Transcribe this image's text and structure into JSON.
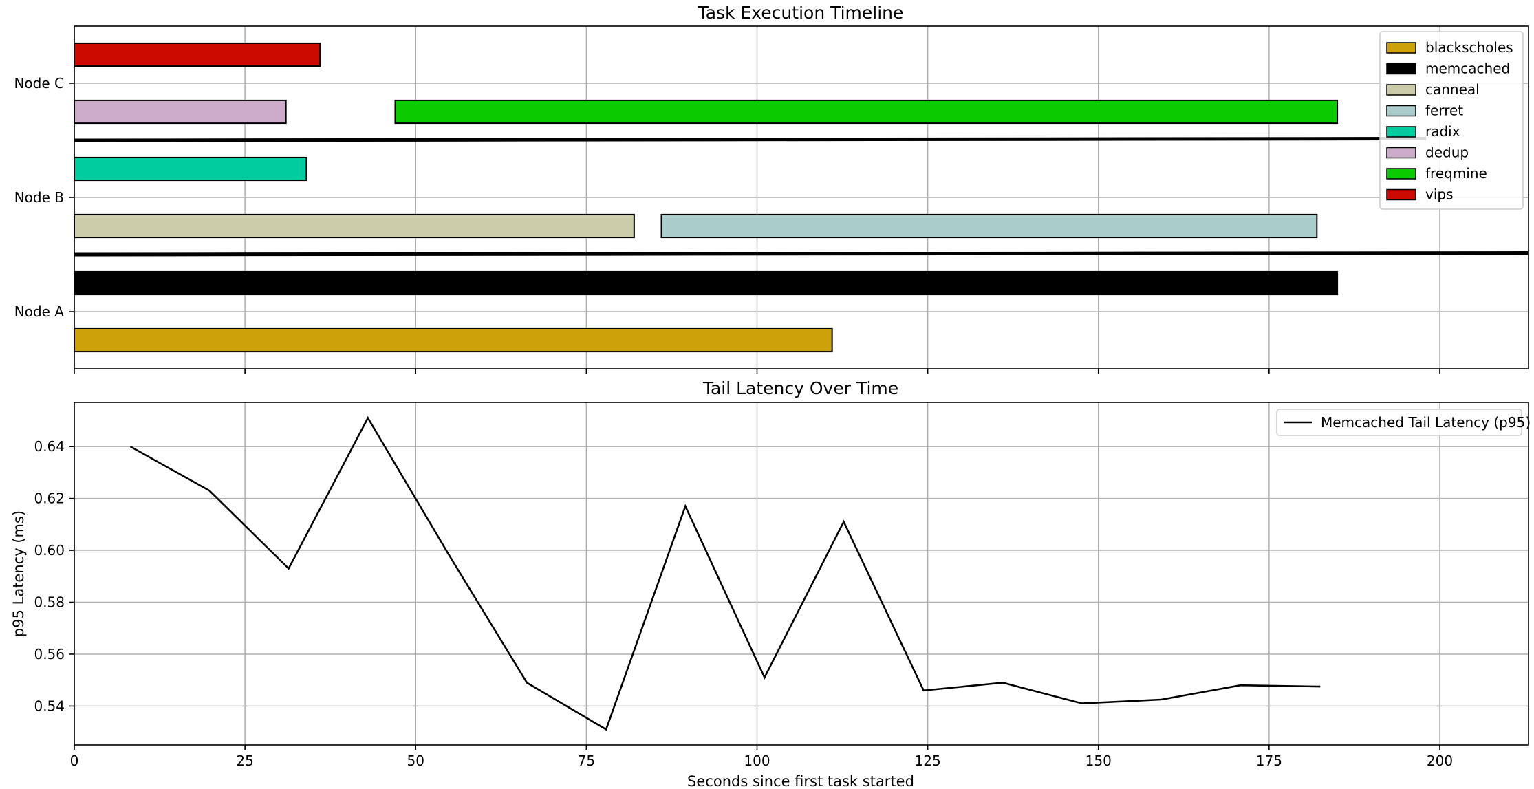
{
  "colors": {
    "blackscholes": "#CCA10A",
    "memcached": "#000000",
    "canneal": "#CCCCAA",
    "ferret": "#AACCCA",
    "radix": "#00CCA0",
    "dedup": "#CCACCA",
    "freqmine": "#0CCA00",
    "vips": "#CC0A00"
  },
  "chart_data": [
    {
      "type": "bar",
      "orientation": "horizontal",
      "title": "Task Execution Timeline",
      "xlabel": "",
      "ylabel": "",
      "xlim": [
        0,
        213
      ],
      "ylim": [
        -0.5,
        5.5
      ],
      "grid": true,
      "legend_position": "top-right",
      "xticks": [
        0,
        25,
        50,
        75,
        100,
        125,
        150,
        175,
        200
      ],
      "node_labels": [
        {
          "label": "Node A",
          "y": 0.5
        },
        {
          "label": "Node B",
          "y": 2.5
        },
        {
          "label": "Node C",
          "y": 4.5
        }
      ],
      "tasks": [
        {
          "name": "blackscholes",
          "row": 0,
          "start": 0,
          "end": 111
        },
        {
          "name": "memcached",
          "row": 1,
          "start": 0,
          "end": 185
        },
        {
          "name": "canneal",
          "row": 2,
          "start": 0,
          "end": 82
        },
        {
          "name": "ferret",
          "row": 2,
          "start": 86,
          "end": 182
        },
        {
          "name": "radix",
          "row": 3,
          "start": 0,
          "end": 34
        },
        {
          "name": "dedup",
          "row": 4,
          "start": 0,
          "end": 31
        },
        {
          "name": "freqmine",
          "row": 4,
          "start": 47,
          "end": 185
        },
        {
          "name": "vips",
          "row": 5,
          "start": 0,
          "end": 36
        }
      ],
      "separators": [
        {
          "x": [
            0,
            213
          ],
          "y": [
            1.5,
            1.53
          ]
        },
        {
          "x": [
            0,
            198
          ],
          "y": [
            3.5,
            3.53
          ]
        }
      ],
      "legend": [
        "blackscholes",
        "memcached",
        "canneal",
        "ferret",
        "radix",
        "dedup",
        "freqmine",
        "vips"
      ]
    },
    {
      "type": "line",
      "title": "Tail Latency Over Time",
      "xlabel": "Seconds since first task started",
      "ylabel": "p95 Latency (ms)",
      "xlim": [
        0,
        213
      ],
      "ylim": [
        0.525,
        0.657
      ],
      "grid": true,
      "legend_position": "top-right",
      "xticks": [
        0,
        25,
        50,
        75,
        100,
        125,
        150,
        175,
        200
      ],
      "yticks": [
        0.54,
        0.56,
        0.58,
        0.6,
        0.62,
        0.64
      ],
      "series": [
        {
          "name": "Memcached Tail Latency (p95)",
          "color": "#000000",
          "x": [
            8.2,
            19.8,
            31.4,
            43.0,
            54.7,
            66.3,
            77.9,
            89.5,
            101.1,
            112.7,
            124.4,
            136.0,
            147.6,
            159.2,
            170.8,
            182.5
          ],
          "y": [
            0.64,
            0.623,
            0.593,
            0.651,
            0.599,
            0.549,
            0.531,
            0.617,
            0.551,
            0.611,
            0.546,
            0.549,
            0.541,
            0.5425,
            0.548,
            0.5475
          ]
        }
      ]
    }
  ]
}
